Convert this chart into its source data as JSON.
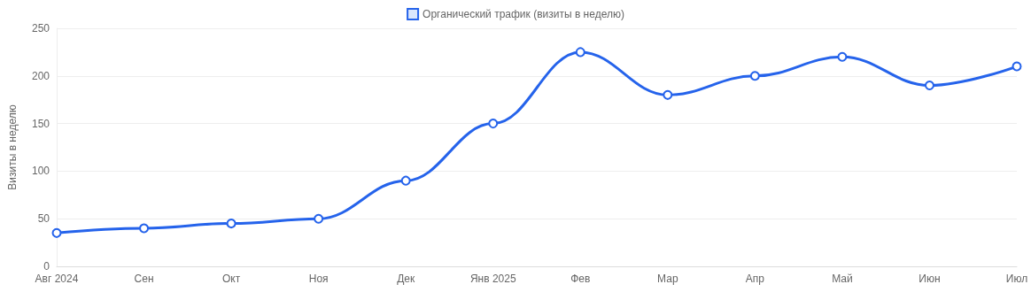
{
  "chart_data": {
    "type": "line",
    "ylabel": "Визиты в неделю",
    "categories": [
      "Авг 2024",
      "Сен",
      "Окт",
      "Ноя",
      "Дек",
      "Янв 2025",
      "Фев",
      "Мар",
      "Апр",
      "Май",
      "Июн",
      "Июл"
    ],
    "series": [
      {
        "name": "Органический трафик (визиты в неделю)",
        "color": "#2563eb",
        "values": [
          35,
          40,
          45,
          50,
          90,
          150,
          225,
          180,
          200,
          220,
          190,
          210
        ]
      }
    ],
    "ylim": [
      0,
      250
    ],
    "yticks": [
      0,
      50,
      100,
      150,
      200,
      250
    ],
    "grid": "y",
    "legend": "top",
    "marker": "circle",
    "line_style": "solid"
  }
}
